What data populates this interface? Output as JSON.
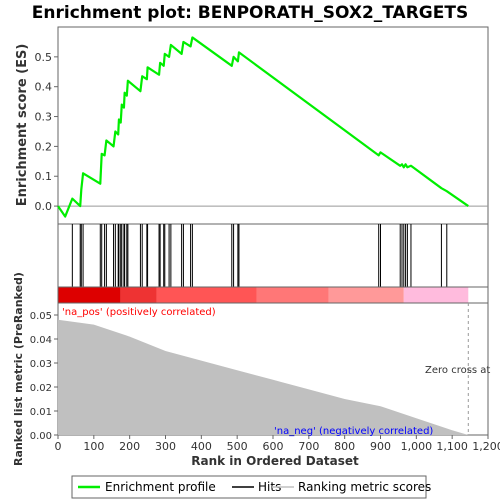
{
  "chart_data": {
    "title": "Enrichment plot: BENPORATH_SOX2_TARGETS",
    "type": "line",
    "xlabel": "Rank in Ordered Dataset",
    "xlim": [
      0,
      1200
    ],
    "xticks": [
      0,
      100,
      200,
      300,
      400,
      500,
      600,
      700,
      800,
      900,
      1000,
      1100,
      1200
    ],
    "xtick_labels": [
      "0",
      "100",
      "200",
      "300",
      "400",
      "500",
      "600",
      "700",
      "800",
      "900",
      "1,000",
      "1,100",
      "1,200"
    ],
    "n_genes": 1145,
    "es_panel": {
      "ylabel": "Enrichment score (ES)",
      "ylim": [
        -0.06,
        0.6
      ],
      "yticks": [
        0.0,
        0.1,
        0.2,
        0.3,
        0.4,
        0.5
      ],
      "ytick_labels": [
        "0.0",
        "0.1",
        "0.2",
        "0.3",
        "0.4",
        "0.5"
      ],
      "series": [
        {
          "name": "Enrichment profile",
          "color": "#00ee00",
          "points": [
            [
              0,
              0.0
            ],
            [
              20,
              -0.035
            ],
            [
              40,
              0.025
            ],
            [
              62,
              0.0
            ],
            [
              65,
              0.055
            ],
            [
              70,
              0.11
            ],
            [
              118,
              0.075
            ],
            [
              122,
              0.175
            ],
            [
              130,
              0.17
            ],
            [
              135,
              0.22
            ],
            [
              155,
              0.2
            ],
            [
              160,
              0.25
            ],
            [
              168,
              0.24
            ],
            [
              170,
              0.29
            ],
            [
              175,
              0.28
            ],
            [
              178,
              0.34
            ],
            [
              184,
              0.33
            ],
            [
              186,
              0.38
            ],
            [
              192,
              0.37
            ],
            [
              195,
              0.42
            ],
            [
              230,
              0.385
            ],
            [
              235,
              0.435
            ],
            [
              248,
              0.425
            ],
            [
              250,
              0.465
            ],
            [
              282,
              0.44
            ],
            [
              285,
              0.48
            ],
            [
              295,
              0.47
            ],
            [
              298,
              0.51
            ],
            [
              310,
              0.5
            ],
            [
              315,
              0.54
            ],
            [
              345,
              0.51
            ],
            [
              350,
              0.55
            ],
            [
              370,
              0.535
            ],
            [
              375,
              0.565
            ],
            [
              485,
              0.47
            ],
            [
              490,
              0.5
            ],
            [
              502,
              0.485
            ],
            [
              505,
              0.515
            ],
            [
              895,
              0.17
            ],
            [
              900,
              0.18
            ],
            [
              955,
              0.135
            ],
            [
              960,
              0.14
            ],
            [
              965,
              0.13
            ],
            [
              970,
              0.14
            ],
            [
              975,
              0.13
            ],
            [
              985,
              0.135
            ],
            [
              1070,
              0.06
            ],
            [
              1085,
              0.05
            ],
            [
              1145,
              0.0
            ]
          ]
        }
      ]
    },
    "hits": [
      40,
      62,
      65,
      70,
      118,
      122,
      130,
      135,
      155,
      160,
      168,
      170,
      175,
      178,
      184,
      186,
      192,
      195,
      230,
      235,
      248,
      250,
      282,
      285,
      295,
      298,
      310,
      315,
      345,
      350,
      370,
      375,
      485,
      490,
      502,
      505,
      895,
      900,
      955,
      960,
      965,
      970,
      975,
      985,
      1070,
      1085
    ],
    "color_bar": {
      "segments": [
        {
          "from": 0,
          "to": 175,
          "color": "#dd0000"
        },
        {
          "from": 175,
          "to": 275,
          "color": "#ee3333"
        },
        {
          "from": 275,
          "to": 555,
          "color": "#ff5555"
        },
        {
          "from": 555,
          "to": 755,
          "color": "#ff7777"
        },
        {
          "from": 755,
          "to": 965,
          "color": "#ff9999"
        },
        {
          "from": 965,
          "to": 1145,
          "color": "#ffbbdd"
        }
      ]
    },
    "metric_panel": {
      "ylabel": "Ranked list metric (PreRanked)",
      "ylim": [
        0,
        0.055
      ],
      "yticks": [
        0.0,
        0.01,
        0.02,
        0.03,
        0.04,
        0.05
      ],
      "ytick_labels": [
        "0.00",
        "0.01",
        "0.02",
        "0.03",
        "0.04",
        "0.05"
      ],
      "fill_color": "#c0c0c0",
      "points": [
        [
          0,
          0.048
        ],
        [
          100,
          0.046
        ],
        [
          200,
          0.041
        ],
        [
          300,
          0.035
        ],
        [
          400,
          0.031
        ],
        [
          500,
          0.027
        ],
        [
          600,
          0.023
        ],
        [
          700,
          0.019
        ],
        [
          800,
          0.015
        ],
        [
          900,
          0.012
        ],
        [
          1000,
          0.007
        ],
        [
          1100,
          0.002
        ],
        [
          1145,
          0.0
        ]
      ],
      "zero_cross": 1145
    },
    "annotations": {
      "pos": "'na_pos' (positively correlated)",
      "neg": "'na_neg' (negatively correlated)",
      "zero_cross": "Zero cross at",
      "pos_color": "#ff0000",
      "neg_color": "#0000ff"
    },
    "legend": {
      "placement": "bottom",
      "items": [
        {
          "label": "Enrichment profile",
          "color": "#00ee00"
        },
        {
          "label": "Hits",
          "color": "#000000"
        },
        {
          "label": "Ranking metric scores",
          "color": "#c0c0c0"
        }
      ]
    }
  }
}
